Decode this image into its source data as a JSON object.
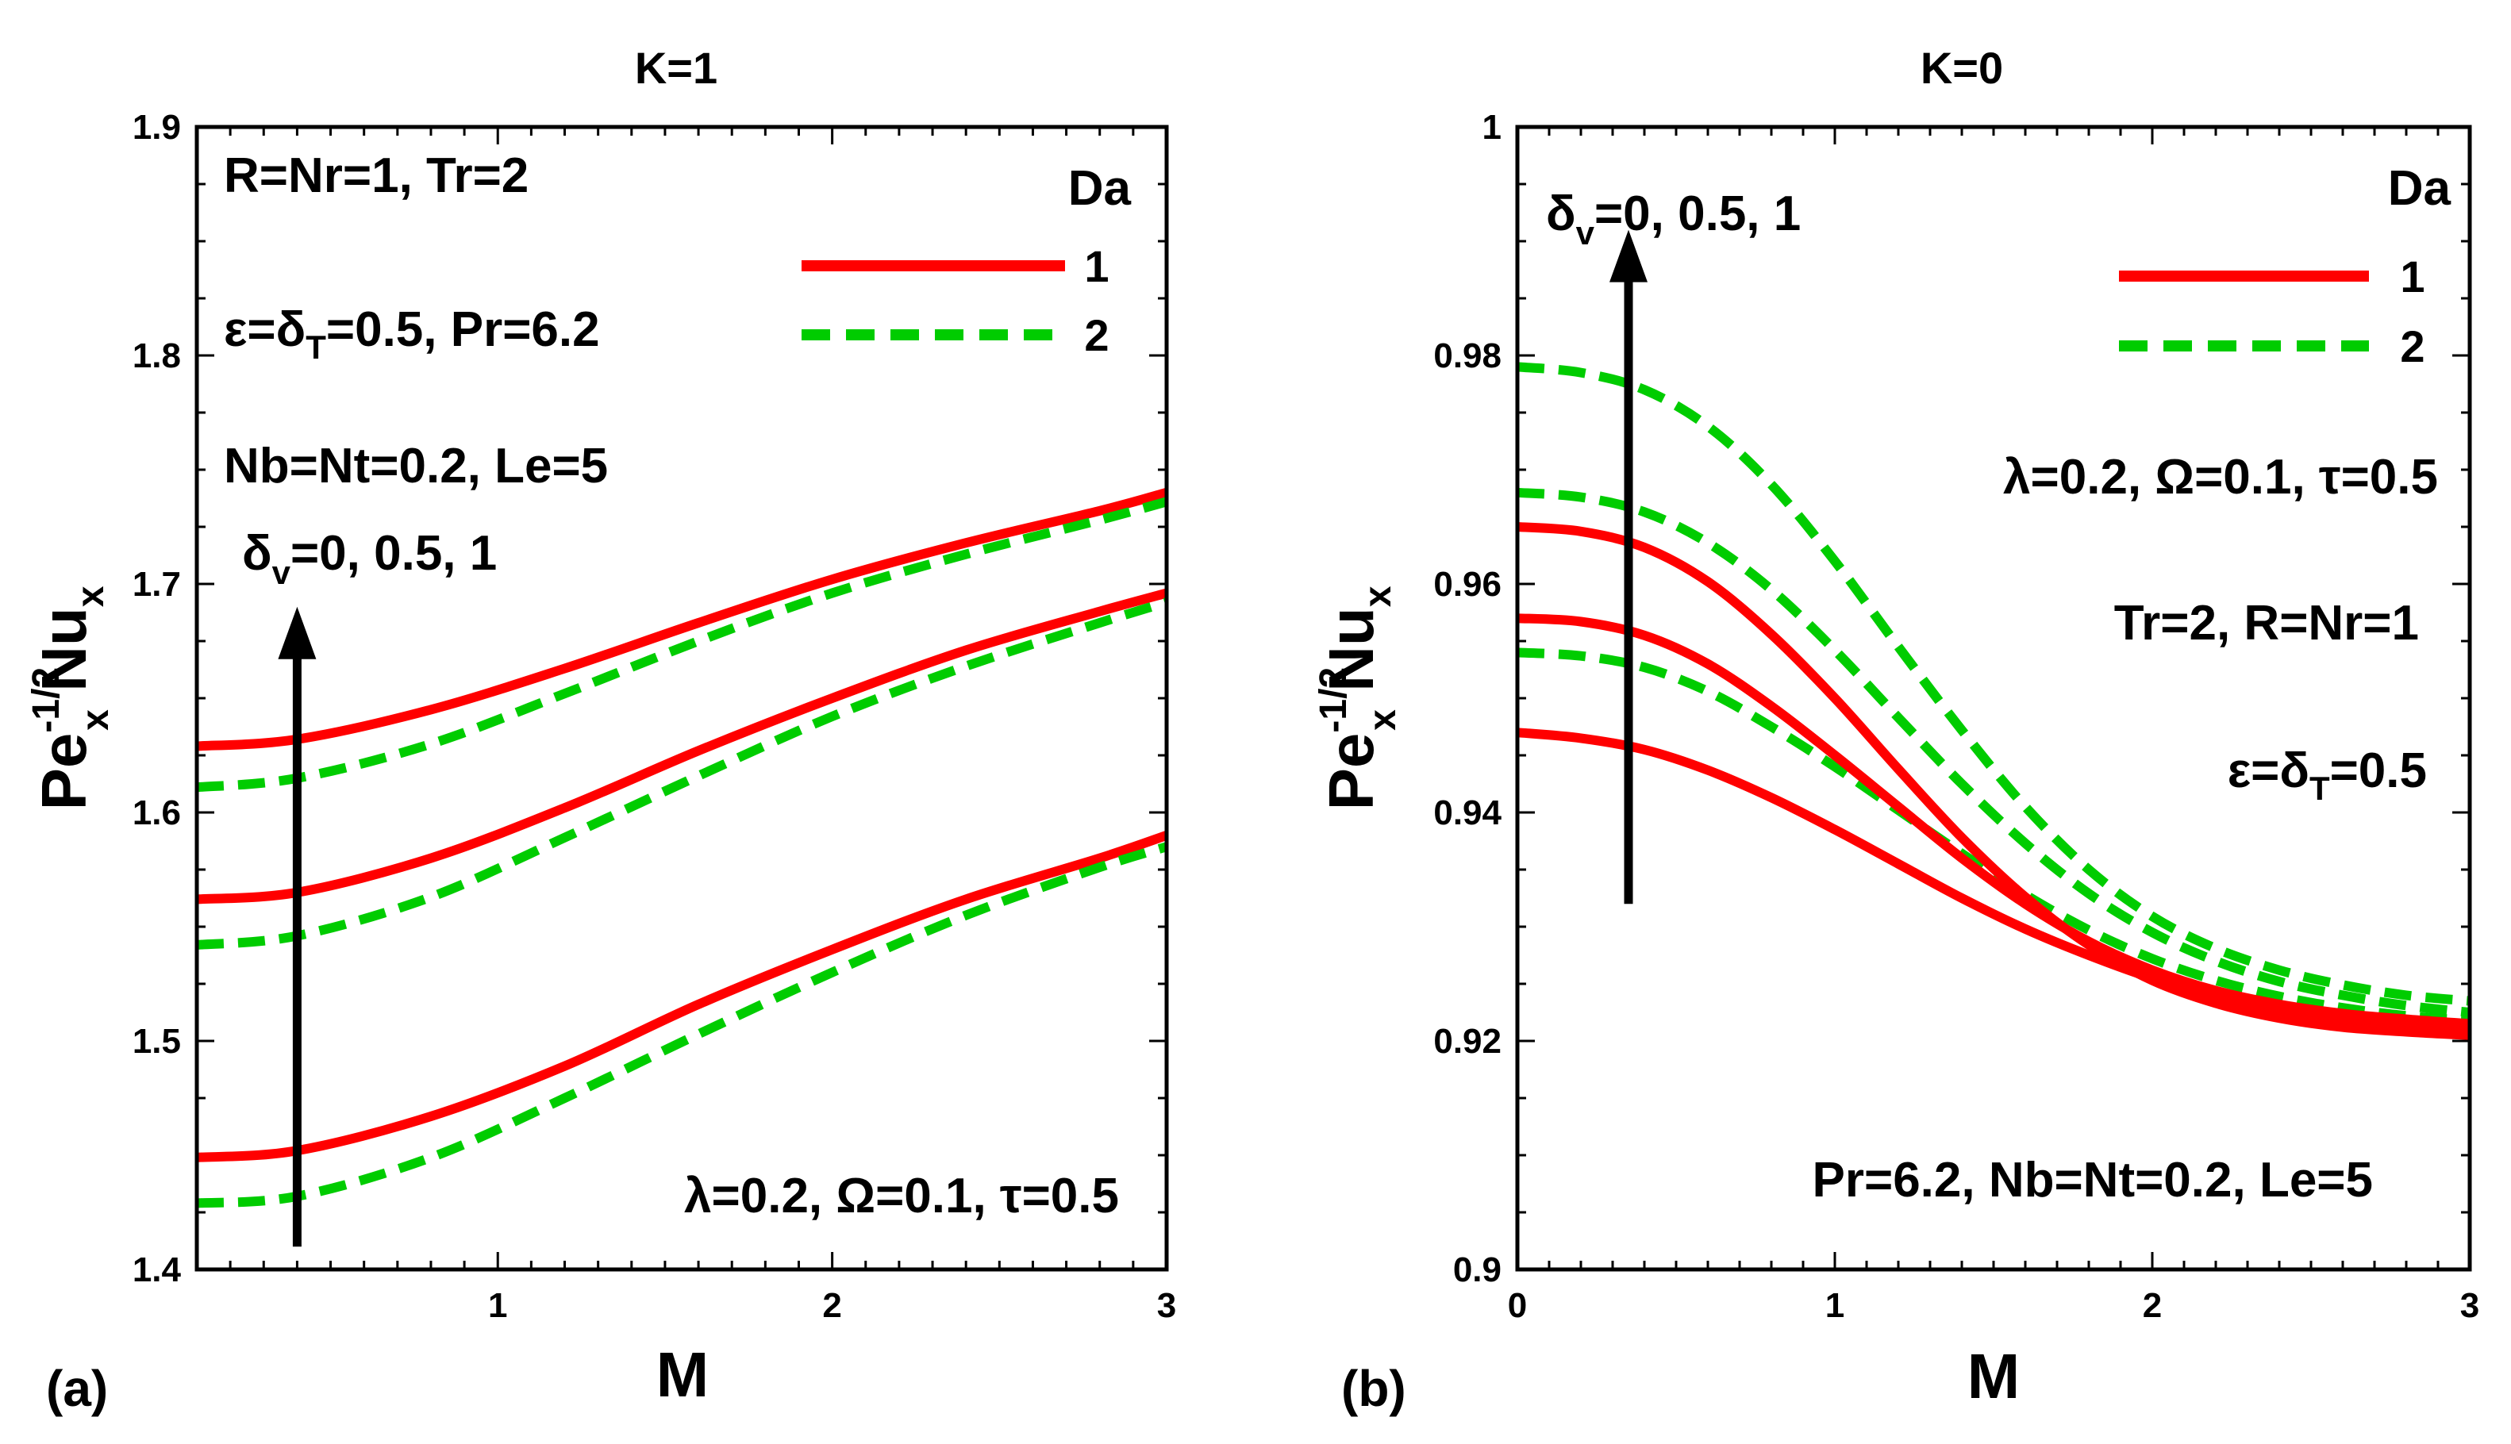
{
  "colors": {
    "da1": "#ff0000",
    "da2": "#00cc00",
    "text": "#000000"
  },
  "chart_data": [
    {
      "type": "line",
      "panel_label": "(a)",
      "title": "K=1",
      "xlabel": "M",
      "ylabel": {
        "base": "Pe",
        "sup": "-1/2",
        "sub": "x",
        "mid": " Nu",
        "sub2": "x"
      },
      "xlim": [
        0.1,
        3
      ],
      "ylim": [
        1.4,
        1.9
      ],
      "xticks": [
        1,
        2,
        3
      ],
      "xtick_labels": [
        "1",
        "2",
        "3"
      ],
      "yticks": [
        1.4,
        1.5,
        1.6,
        1.7,
        1.8,
        1.9
      ],
      "ytick_labels": [
        "1.4",
        "1.5",
        "1.6",
        "1.7",
        "1.8",
        "1.9"
      ],
      "legend_title": "Da",
      "legend": [
        {
          "key": "da1",
          "label": "1"
        },
        {
          "key": "da2",
          "label": "2"
        }
      ],
      "annotations": {
        "a1": "R=Nr=1, Tr=2",
        "a2": {
          "p1": "ε=δ",
          "sub": "T",
          "p2": "=0.5, Pr=6.2"
        },
        "a3": "Nb=Nt=0.2, Le=5",
        "a4": "λ=0.2, Ω=0.1, τ=0.5"
      },
      "arrow_label": {
        "p1": "δ",
        "sub": "v",
        "p2": "=0, 0.5, 1"
      },
      "arrow": {
        "x": 0.4,
        "y_from": 1.41,
        "y_to": 1.69
      },
      "x": [
        0.1,
        0.4,
        0.8,
        1.2,
        1.6,
        2.0,
        2.4,
        2.8,
        3.0
      ],
      "series": [
        {
          "name": "Da=1, δv=0",
          "da": "1",
          "values": [
            1.449,
            1.452,
            1.467,
            1.489,
            1.516,
            1.54,
            1.562,
            1.58,
            1.59
          ]
        },
        {
          "name": "Da=2, δv=0",
          "da": "2",
          "values": [
            1.429,
            1.432,
            1.449,
            1.475,
            1.503,
            1.53,
            1.555,
            1.576,
            1.585
          ]
        },
        {
          "name": "Da=1, δv=0.5",
          "da": "1",
          "values": [
            1.562,
            1.565,
            1.58,
            1.602,
            1.627,
            1.65,
            1.671,
            1.688,
            1.696
          ]
        },
        {
          "name": "Da=2, δv=0.5",
          "da": "2",
          "values": [
            1.542,
            1.546,
            1.563,
            1.589,
            1.616,
            1.642,
            1.664,
            1.683,
            1.692
          ]
        },
        {
          "name": "Da=1, δv=1",
          "da": "1",
          "values": [
            1.629,
            1.632,
            1.645,
            1.663,
            1.683,
            1.702,
            1.718,
            1.732,
            1.74
          ]
        },
        {
          "name": "Da=2, δv=1",
          "da": "2",
          "values": [
            1.611,
            1.615,
            1.63,
            1.652,
            1.675,
            1.696,
            1.713,
            1.728,
            1.736
          ]
        }
      ]
    },
    {
      "type": "line",
      "panel_label": "(b)",
      "title": "K=0",
      "xlabel": "M",
      "ylabel": {
        "base": "Pe",
        "sup": "-1/2",
        "sub": "x",
        "mid": " Nu",
        "sub2": "x"
      },
      "xlim": [
        0,
        3
      ],
      "ylim": [
        0.9,
        1.0
      ],
      "xticks": [
        0,
        1,
        2,
        3
      ],
      "xtick_labels": [
        "0",
        "1",
        "2",
        "3"
      ],
      "yticks": [
        0.9,
        0.92,
        0.94,
        0.96,
        0.98,
        1.0
      ],
      "ytick_labels": [
        "0.9",
        "0.92",
        "0.94",
        "0.96",
        "0.98",
        "1"
      ],
      "legend_title": "Da",
      "legend": [
        {
          "key": "da1",
          "label": "1"
        },
        {
          "key": "da2",
          "label": "2"
        }
      ],
      "annotations": {
        "a1": "λ=0.2, Ω=0.1, τ=0.5",
        "a2": "Tr=2, R=Nr=1",
        "a3": {
          "p1": "ε=δ",
          "sub": "T",
          "p2": "=0.5"
        },
        "a4": "Pr=6.2, Nb=Nt=0.2, Le=5"
      },
      "arrow_label": {
        "p1": "δ",
        "sub": "v",
        "p2": "=0, 0.5, 1"
      },
      "arrow": {
        "x": 0.35,
        "y_from": 0.932,
        "y_to": 0.991
      },
      "x": [
        0,
        0.2,
        0.4,
        0.6,
        0.8,
        1.0,
        1.2,
        1.4,
        1.6,
        1.8,
        2.0,
        2.2,
        2.4,
        2.6,
        2.8,
        3.0
      ],
      "series": [
        {
          "name": "Da=1, δv=0",
          "da": "1",
          "values": [
            0.947,
            0.9465,
            0.9455,
            0.9437,
            0.9413,
            0.9385,
            0.9355,
            0.9325,
            0.9298,
            0.9275,
            0.9255,
            0.924,
            0.9228,
            0.922,
            0.9214,
            0.921
          ]
        },
        {
          "name": "Da=2, δv=0",
          "da": "2",
          "values": [
            0.954,
            0.9537,
            0.9527,
            0.9506,
            0.9475,
            0.944,
            0.9402,
            0.9364,
            0.9328,
            0.9297,
            0.9272,
            0.9253,
            0.9239,
            0.9229,
            0.9222,
            0.9218
          ]
        },
        {
          "name": "Da=1, δv=0.5",
          "da": "1",
          "values": [
            0.957,
            0.9567,
            0.9555,
            0.953,
            0.9493,
            0.945,
            0.9405,
            0.936,
            0.932,
            0.9287,
            0.9262,
            0.9244,
            0.9232,
            0.9224,
            0.9219,
            0.9215
          ]
        },
        {
          "name": "Da=2, δv=0.5",
          "da": "2",
          "values": [
            0.968,
            0.9676,
            0.9663,
            0.9636,
            0.9595,
            0.9542,
            0.9483,
            0.9425,
            0.9373,
            0.9329,
            0.9295,
            0.927,
            0.9252,
            0.924,
            0.9231,
            0.9225
          ]
        },
        {
          "name": "Da=1, δv=1",
          "da": "1",
          "values": [
            0.965,
            0.9646,
            0.9632,
            0.9602,
            0.9556,
            0.95,
            0.9438,
            0.9378,
            0.9326,
            0.9284,
            0.9253,
            0.9233,
            0.922,
            0.9212,
            0.9208,
            0.9205
          ]
        },
        {
          "name": "Da=2, δv=1",
          "da": "2",
          "values": [
            0.979,
            0.9785,
            0.977,
            0.9738,
            0.9687,
            0.962,
            0.9545,
            0.9472,
            0.9405,
            0.935,
            0.9309,
            0.9281,
            0.9262,
            0.9249,
            0.924,
            0.9235
          ]
        }
      ]
    }
  ]
}
